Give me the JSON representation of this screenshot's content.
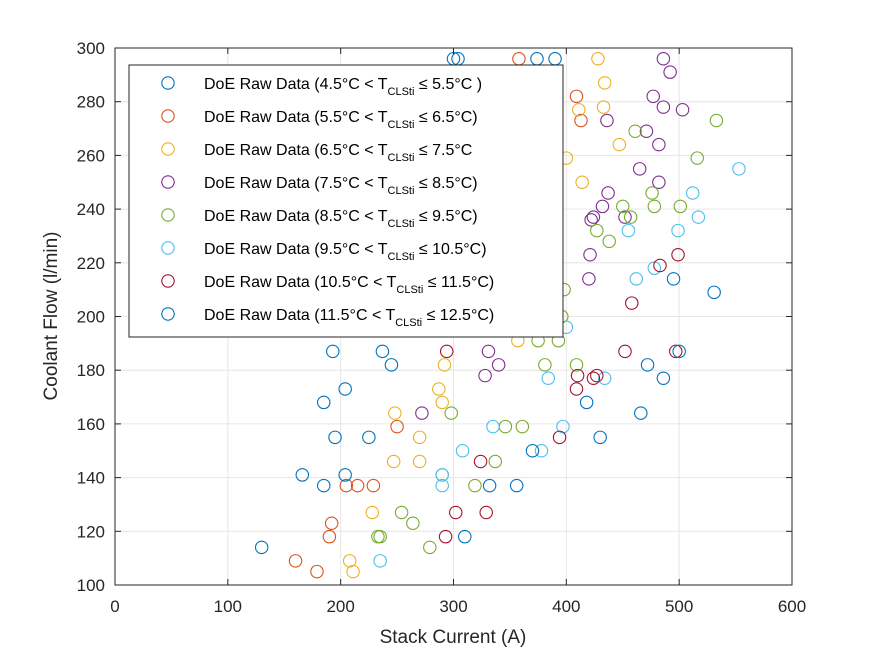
{
  "chart_data": {
    "type": "scatter",
    "xlabel": "Stack Current (A)",
    "ylabel": "Coolant Flow (l/min)",
    "xlim": [
      0,
      600
    ],
    "ylim": [
      100,
      300
    ],
    "xticks": [
      "0",
      "100",
      "200",
      "300",
      "400",
      "500",
      "600"
    ],
    "yticks": [
      "100",
      "120",
      "140",
      "160",
      "180",
      "200",
      "220",
      "240",
      "260",
      "280",
      "300"
    ],
    "grid": true,
    "legend_position": "top-left",
    "marker": "open-circle",
    "series": [
      {
        "name": "DoE Raw Data (4.5°C < T_CLSti ≤ 5.5°C )",
        "legend": {
          "pre": "DoE Raw Data (4.5°C < T",
          "sub": "CLSti",
          "post": " ≤ 5.5°C )"
        },
        "color": "#0072BD",
        "points": [
          [
            300,
            296
          ],
          [
            304,
            296
          ],
          [
            374,
            296
          ],
          [
            390,
            296
          ]
        ]
      },
      {
        "name": "DoE Raw Data (5.5°C < T_CLSti ≤ 6.5°C)",
        "legend": {
          "pre": "DoE Raw Data (5.5°C < T",
          "sub": "CLSti",
          "post": " ≤ 6.5°C)"
        },
        "color": "#D95319",
        "points": [
          [
            358,
            296
          ],
          [
            409,
            282
          ],
          [
            413,
            273
          ],
          [
            160,
            109
          ],
          [
            179,
            105
          ],
          [
            192,
            123
          ],
          [
            190,
            118
          ],
          [
            205,
            137
          ],
          [
            215,
            137
          ],
          [
            229,
            137
          ],
          [
            250,
            159
          ]
        ]
      },
      {
        "name": "DoE Raw Data (6.5°C < T_CLSti ≤ 7.5°C",
        "legend": {
          "pre": "DoE Raw Data (6.5°C < T",
          "sub": "CLSti",
          "post": " ≤ 7.5°C"
        },
        "color": "#EDB120",
        "points": [
          [
            428,
            296
          ],
          [
            434,
            287
          ],
          [
            433,
            278
          ],
          [
            411,
            277
          ],
          [
            400,
            259
          ],
          [
            414,
            250
          ],
          [
            447,
            264
          ],
          [
            357,
            191
          ],
          [
            287,
            173
          ],
          [
            292,
            182
          ],
          [
            290,
            168
          ],
          [
            248,
            164
          ],
          [
            270,
            155
          ],
          [
            247,
            146
          ],
          [
            270,
            146
          ],
          [
            228,
            127
          ],
          [
            208,
            109
          ],
          [
            211,
            105
          ]
        ]
      },
      {
        "name": "DoE Raw Data (7.5°C < T_CLSti ≤ 8.5°C)",
        "legend": {
          "pre": "DoE Raw Data (7.5°C < T",
          "sub": "CLSti",
          "post": " ≤ 8.5°C)"
        },
        "color": "#7E2F8E",
        "points": [
          [
            486,
            296
          ],
          [
            492,
            291
          ],
          [
            503,
            277
          ],
          [
            486,
            278
          ],
          [
            436,
            273
          ],
          [
            477,
            282
          ],
          [
            471,
            269
          ],
          [
            482,
            264
          ],
          [
            465,
            255
          ],
          [
            482,
            250
          ],
          [
            437,
            246
          ],
          [
            432,
            241
          ],
          [
            424,
            237
          ],
          [
            422,
            236
          ],
          [
            421,
            223
          ],
          [
            452,
            237
          ],
          [
            420,
            214
          ],
          [
            331,
            187
          ],
          [
            340,
            182
          ],
          [
            328,
            178
          ],
          [
            272,
            164
          ]
        ]
      },
      {
        "name": "DoE Raw Data (8.5°C < T_CLSti ≤ 9.5°C)",
        "legend": {
          "pre": "DoE Raw Data (8.5°C < T",
          "sub": "CLSti",
          "post": " ≤ 9.5°C)"
        },
        "color": "#77AC30",
        "points": [
          [
            533,
            273
          ],
          [
            461,
            269
          ],
          [
            516,
            259
          ],
          [
            476,
            246
          ],
          [
            501,
            241
          ],
          [
            478,
            241
          ],
          [
            450,
            241
          ],
          [
            457,
            237
          ],
          [
            427,
            232
          ],
          [
            438,
            228
          ],
          [
            398,
            210
          ],
          [
            396,
            200
          ],
          [
            393,
            191
          ],
          [
            375,
            191
          ],
          [
            381,
            182
          ],
          [
            409,
            182
          ],
          [
            346,
            159
          ],
          [
            361,
            159
          ],
          [
            337,
            146
          ],
          [
            319,
            137
          ],
          [
            298,
            164
          ],
          [
            290,
            141
          ],
          [
            254,
            127
          ],
          [
            264,
            123
          ],
          [
            279,
            114
          ],
          [
            233,
            118
          ],
          [
            235,
            118
          ]
        ]
      },
      {
        "name": "DoE Raw Data (9.5°C < T_CLSti ≤ 10.5°C)",
        "legend": {
          "pre": "DoE Raw Data (9.5°C < T",
          "sub": "CLSti",
          "post": " ≤ 10.5°C)"
        },
        "color": "#4DBEEE",
        "points": [
          [
            553,
            255
          ],
          [
            512,
            246
          ],
          [
            517,
            237
          ],
          [
            455,
            232
          ],
          [
            499,
            232
          ],
          [
            462,
            214
          ],
          [
            478,
            218
          ],
          [
            400,
            196
          ],
          [
            384,
            177
          ],
          [
            434,
            177
          ],
          [
            397,
            159
          ],
          [
            378,
            150
          ],
          [
            335,
            159
          ],
          [
            308,
            150
          ],
          [
            290,
            141
          ],
          [
            290,
            137
          ],
          [
            235,
            109
          ]
        ]
      },
      {
        "name": "DoE Raw Data (10.5°C < T_CLSti ≤ 11.5°C)",
        "legend": {
          "pre": "DoE Raw Data (10.5°C < T",
          "sub": "CLSti",
          "post": " ≤ 11.5°C)"
        },
        "color": "#A2142F",
        "points": [
          [
            499,
            223
          ],
          [
            483,
            219
          ],
          [
            458,
            205
          ],
          [
            497,
            187
          ],
          [
            452,
            187
          ],
          [
            410,
            178
          ],
          [
            424,
            177
          ],
          [
            427,
            178
          ],
          [
            409,
            173
          ],
          [
            394,
            155
          ],
          [
            294,
            187
          ],
          [
            324,
            146
          ],
          [
            302,
            127
          ],
          [
            329,
            127
          ],
          [
            293,
            118
          ]
        ]
      },
      {
        "name": "DoE Raw Data (11.5°C < T_CLSti ≤ 12.5°C)",
        "legend": {
          "pre": "DoE Raw Data (11.5°C < T",
          "sub": "CLSti",
          "post": " ≤ 12.5°C)"
        },
        "color": "#0072BD",
        "points": [
          [
            531,
            209
          ],
          [
            495,
            214
          ],
          [
            193,
            187
          ],
          [
            237,
            187
          ],
          [
            245,
            182
          ],
          [
            204,
            173
          ],
          [
            185,
            168
          ],
          [
            195,
            155
          ],
          [
            225,
            155
          ],
          [
            166,
            141
          ],
          [
            204,
            141
          ],
          [
            185,
            137
          ],
          [
            332,
            137
          ],
          [
            356,
            137
          ],
          [
            310,
            118
          ],
          [
            130,
            114
          ],
          [
            370,
            150
          ],
          [
            418,
            168
          ],
          [
            430,
            155
          ],
          [
            472,
            182
          ],
          [
            500,
            187
          ],
          [
            486,
            177
          ],
          [
            466,
            164
          ]
        ]
      }
    ]
  }
}
